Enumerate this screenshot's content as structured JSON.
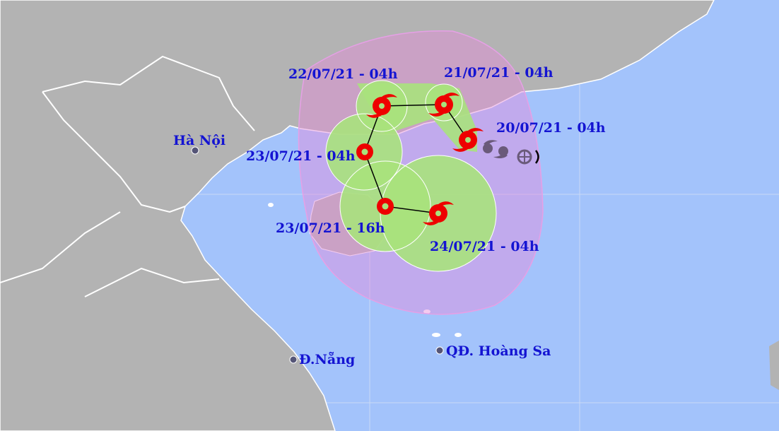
{
  "colors": {
    "sea": "#a3c3fb",
    "land": "#b3b3b3",
    "cone": "#e68cdc",
    "danger_zone": "#a8e27c",
    "storm_icon": "#ee0000",
    "label": "#1414d2",
    "past_track": "#6a5a7a"
  },
  "forecast_points": [
    {
      "label": "20/07/21 - 04h",
      "icon": "typhoon-icon"
    },
    {
      "label": "21/07/21 - 04h",
      "icon": "typhoon-icon"
    },
    {
      "label": "22/07/21 - 04h",
      "icon": "typhoon-icon"
    },
    {
      "label": "23/07/21 - 04h",
      "icon": "tropical-depression-icon"
    },
    {
      "label": "23/07/21 - 16h",
      "icon": "tropical-depression-icon"
    },
    {
      "label": "24/07/21 - 04h",
      "icon": "typhoon-icon"
    }
  ],
  "places": [
    {
      "name": "Hà Nội"
    },
    {
      "name": "Đ.Nẵng"
    },
    {
      "name": "QĐ. Hoàng Sa"
    }
  ]
}
